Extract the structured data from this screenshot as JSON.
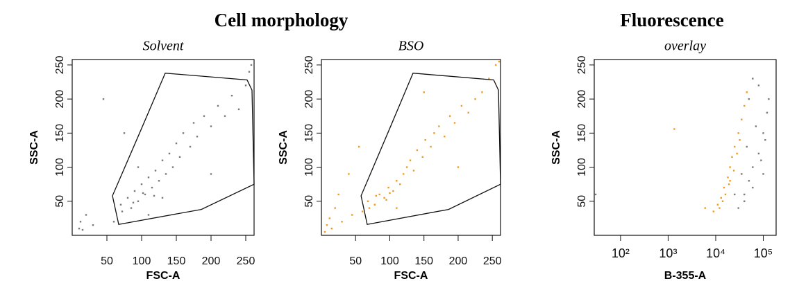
{
  "chart_data": [
    {
      "type": "scatter",
      "title": "Cell morphology",
      "subtitle": "Solvent",
      "xlabel": "FSC-A",
      "ylabel": "SSC-A",
      "xlim": [
        0,
        262
      ],
      "ylim": [
        0,
        258
      ],
      "xticks": [
        50,
        100,
        150,
        200,
        250
      ],
      "yticks": [
        50,
        100,
        150,
        200,
        250
      ],
      "gate": {
        "x": [
          134,
          252,
          259,
          262,
          186,
          67,
          58,
          100
        ],
        "y": [
          238,
          228,
          213,
          75,
          38,
          16,
          58,
          157
        ]
      },
      "series": [
        {
          "color": "#7a7a7a",
          "x": [
            60,
            70,
            80,
            85,
            90,
            95,
            100,
            105,
            110,
            115,
            120,
            125,
            130,
            135,
            140,
            145,
            150,
            155,
            160,
            170,
            175,
            180,
            190,
            200,
            210,
            220,
            230,
            240,
            250,
            255,
            10,
            12,
            15,
            20,
            30,
            45,
            75,
            110,
            95,
            130,
            200,
            258,
            88,
            102,
            118,
            72
          ],
          "y": [
            20,
            45,
            55,
            40,
            65,
            50,
            75,
            60,
            85,
            70,
            95,
            80,
            110,
            90,
            120,
            100,
            135,
            115,
            150,
            130,
            165,
            145,
            175,
            160,
            190,
            175,
            205,
            185,
            220,
            240,
            10,
            20,
            8,
            30,
            15,
            200,
            150,
            30,
            100,
            55,
            90,
            250,
            48,
            62,
            58,
            35
          ]
        }
      ]
    },
    {
      "type": "scatter",
      "subtitle": "BSO",
      "xlabel": "FSC-A",
      "ylabel": "SSC-A",
      "xlim": [
        0,
        262
      ],
      "ylim": [
        0,
        258
      ],
      "xticks": [
        50,
        100,
        150,
        200,
        250
      ],
      "yticks": [
        50,
        100,
        150,
        200,
        250
      ],
      "gate": {
        "x": [
          134,
          252,
          259,
          262,
          186,
          67,
          58,
          100
        ],
        "y": [
          238,
          228,
          213,
          75,
          38,
          16,
          58,
          157
        ]
      },
      "series": [
        {
          "color": "#f39a1e",
          "x": [
            60,
            68,
            78,
            85,
            92,
            98,
            105,
            110,
            115,
            120,
            125,
            130,
            135,
            140,
            148,
            152,
            160,
            165,
            172,
            180,
            188,
            195,
            205,
            215,
            225,
            235,
            245,
            255,
            260,
            5,
            8,
            12,
            15,
            20,
            25,
            30,
            40,
            45,
            55,
            110,
            150,
            200,
            80,
            95,
            70,
            100
          ],
          "y": [
            35,
            50,
            45,
            60,
            55,
            70,
            65,
            80,
            75,
            90,
            100,
            110,
            95,
            125,
            115,
            140,
            130,
            150,
            160,
            145,
            175,
            165,
            190,
            180,
            200,
            210,
            230,
            250,
            255,
            5,
            15,
            25,
            10,
            40,
            60,
            20,
            90,
            30,
            130,
            40,
            210,
            100,
            58,
            52,
            40,
            62
          ]
        }
      ]
    },
    {
      "type": "scatter",
      "title": "Fluorescence",
      "subtitle": "overlay",
      "xlabel": "B-355-A",
      "ylabel": "SSC-A",
      "xscale": "log",
      "xlim": [
        28,
        186000
      ],
      "ylim": [
        0,
        258
      ],
      "xticks": [
        {
          "value": 100,
          "label": "10²"
        },
        {
          "value": 1000,
          "label": "10³"
        },
        {
          "value": 10000,
          "label": "10⁴"
        },
        {
          "value": 100000,
          "label": "10⁵"
        }
      ],
      "yticks": [
        50,
        100,
        150,
        200,
        250
      ],
      "series": [
        {
          "color": "#7a7a7a",
          "x": [
            30000,
            40000,
            50000,
            60000,
            80000,
            100000,
            120000,
            40000,
            60000,
            90000,
            110000,
            70000,
            50000,
            35000,
            130000,
            80000,
            60000,
            45000,
            25000,
            100000,
            30
          ],
          "y": [
            40,
            60,
            80,
            100,
            120,
            150,
            180,
            50,
            70,
            110,
            140,
            160,
            200,
            90,
            200,
            220,
            230,
            130,
            60,
            90,
            60
          ]
        },
        {
          "color": "#f39a1e",
          "x": [
            9000,
            11000,
            13000,
            15000,
            18000,
            20000,
            22000,
            25000,
            30000,
            35000,
            40000,
            45000,
            12000,
            16000,
            20000,
            28000,
            32000,
            14000,
            19000,
            24000,
            1350,
            6000
          ],
          "y": [
            35,
            45,
            55,
            70,
            85,
            100,
            115,
            130,
            150,
            170,
            190,
            210,
            40,
            60,
            80,
            120,
            140,
            50,
            75,
            95,
            156,
            40
          ]
        }
      ]
    }
  ]
}
